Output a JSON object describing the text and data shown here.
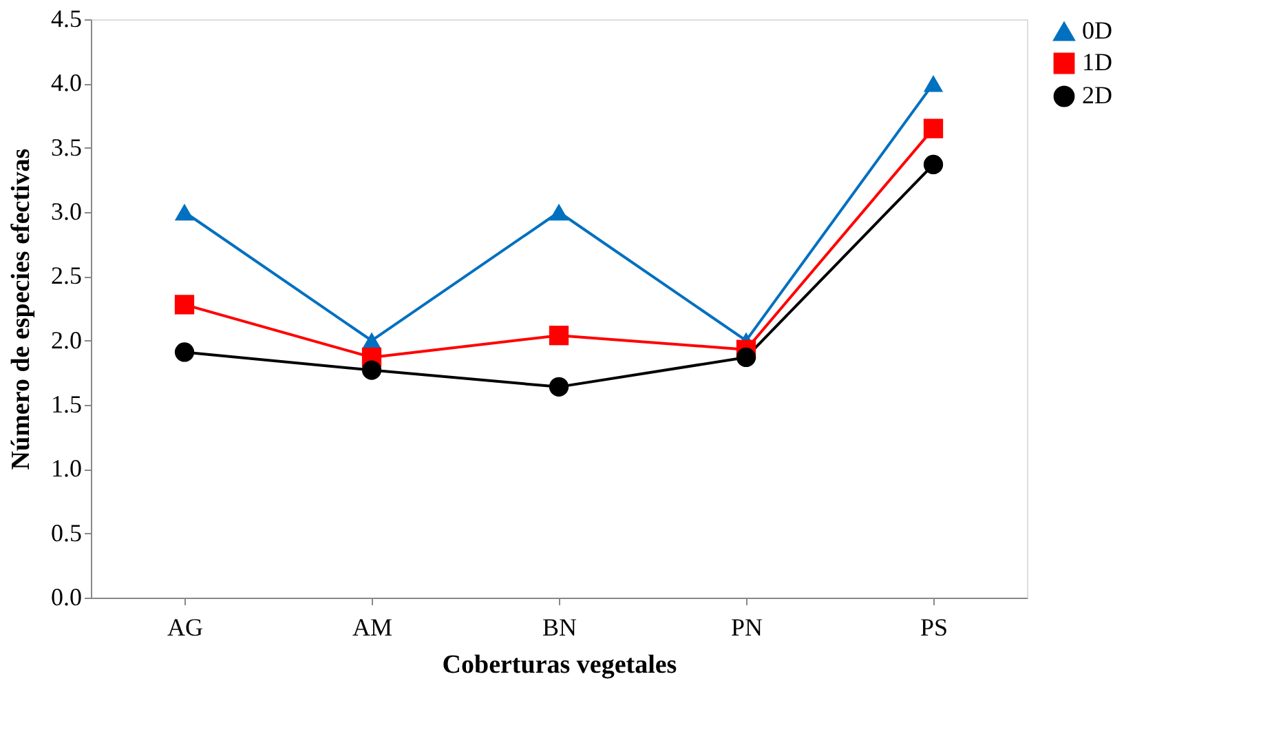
{
  "chart_data": {
    "type": "line",
    "xlabel": "Coberturas vegetales",
    "ylabel": "Número de especies efectivas",
    "categories": [
      "AG",
      "AM",
      "BN",
      "PN",
      "PS"
    ],
    "series": [
      {
        "name": "0D",
        "color": "#0070c0",
        "marker": "triangle",
        "values": [
          3.0,
          2.0,
          3.0,
          2.0,
          4.0
        ]
      },
      {
        "name": "1D",
        "color": "#ff0000",
        "marker": "square",
        "values": [
          2.28,
          1.87,
          2.04,
          1.93,
          3.65
        ]
      },
      {
        "name": "2D",
        "color": "#000000",
        "marker": "circle",
        "values": [
          1.91,
          1.77,
          1.64,
          1.87,
          3.37
        ]
      }
    ],
    "ylim": [
      0,
      4.5
    ],
    "yticks": [
      {
        "value": 0,
        "label": "0.0"
      },
      {
        "value": 0.5,
        "label": "0.5"
      },
      {
        "value": 1,
        "label": "1.0"
      },
      {
        "value": 1.5,
        "label": "1.5"
      },
      {
        "value": 2,
        "label": "2.0"
      },
      {
        "value": 2.5,
        "label": "2.5"
      },
      {
        "value": 3,
        "label": "3.0"
      },
      {
        "value": 3.5,
        "label": "3.5"
      },
      {
        "value": 4,
        "label": "4.0"
      },
      {
        "value": 4.5,
        "label": "4.5"
      }
    ],
    "grid": false,
    "legend": "right",
    "line_style": "solid"
  }
}
